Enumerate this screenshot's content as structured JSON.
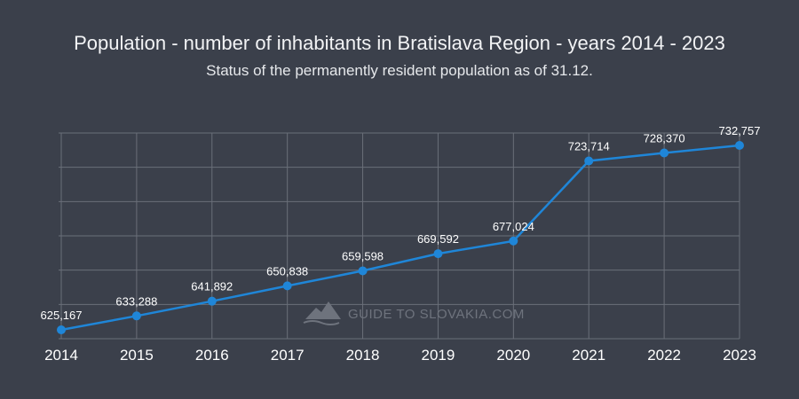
{
  "chart_data": {
    "type": "line",
    "title": "Population - number of inhabitants in Bratislava Region - years 2014 - 2023",
    "subtitle": "Status of the permanently resident population as of 31.12.",
    "categories": [
      "2014",
      "2015",
      "2016",
      "2017",
      "2018",
      "2019",
      "2020",
      "2021",
      "2022",
      "2023"
    ],
    "series": [
      {
        "values": [
          625167,
          633288,
          641892,
          650838,
          659598,
          669592,
          677024,
          723714,
          728370,
          732757
        ],
        "labels": [
          "625,167",
          "633,288",
          "641,892",
          "650,838",
          "659,598",
          "669,592",
          "677,024",
          "723,714",
          "728,370",
          "732,757"
        ],
        "color": "#1f86d8"
      }
    ],
    "ylim": [
      620000,
      740000
    ],
    "grid": true,
    "legend": "none",
    "xlabel": "",
    "ylabel": ""
  },
  "watermark": {
    "text": "GUIDE TO SLOVAKIA.COM",
    "icon": "mountain-icon"
  },
  "colors": {
    "background": "#3b404b",
    "grid": "#6a6f79",
    "series": "#1f86d8"
  }
}
